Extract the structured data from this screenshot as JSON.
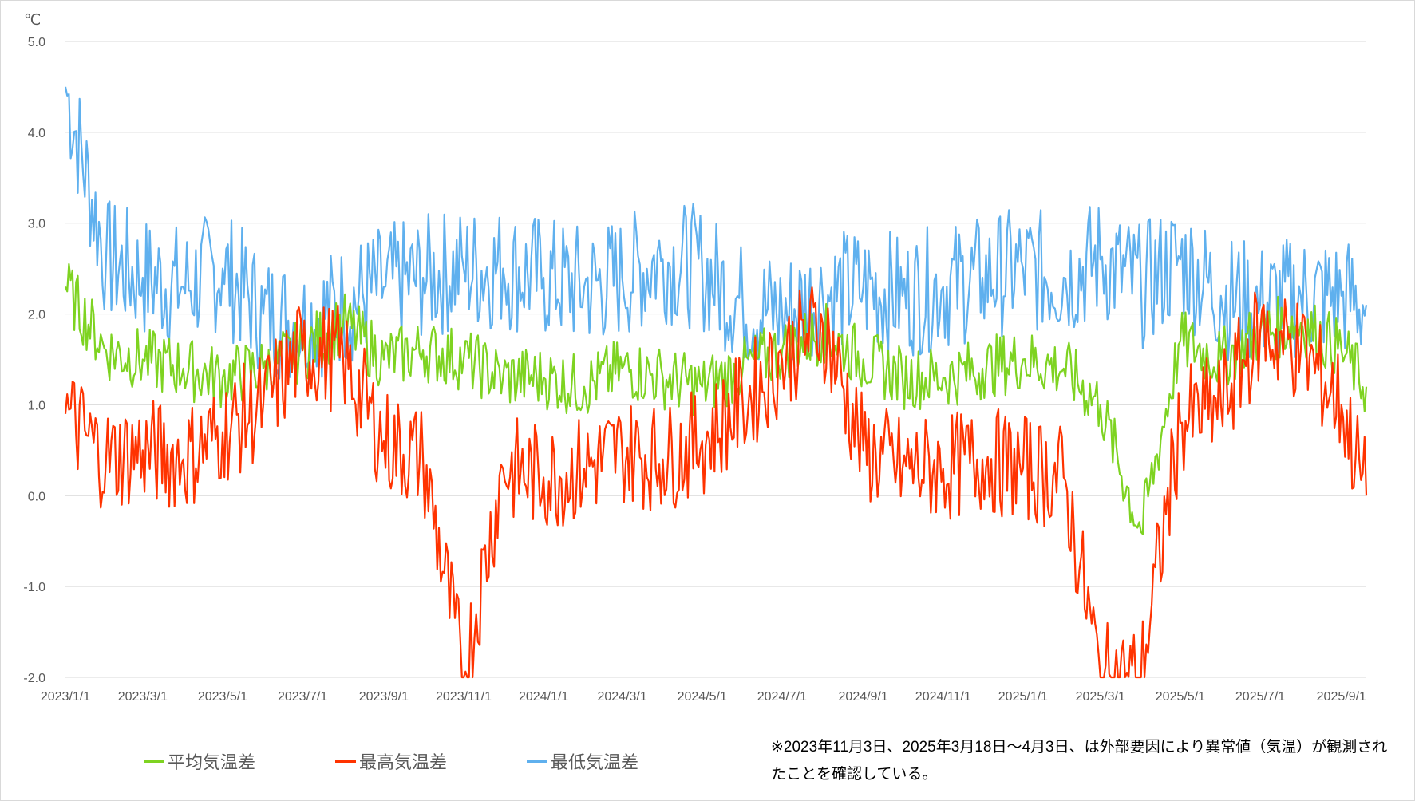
{
  "chart_data": {
    "type": "line",
    "title": "",
    "ylabel": "℃",
    "xlabel": "",
    "ylim": [
      -2.0,
      5.0
    ],
    "y_ticks": [
      "5.0",
      "4.0",
      "3.0",
      "2.0",
      "1.0",
      "0.0",
      "-1.0",
      "-2.0"
    ],
    "x_range": [
      "2023/1/1",
      "2025/9/20"
    ],
    "x_ticks": [
      "2023/1/1",
      "2023/3/1",
      "2023/5/1",
      "2023/7/1",
      "2023/9/1",
      "2023/11/1",
      "2024/1/1",
      "2024/3/1",
      "2024/5/1",
      "2024/7/1",
      "2024/9/1",
      "2024/11/1",
      "2025/1/1",
      "2025/3/1",
      "2025/5/1",
      "2025/7/1",
      "2025/9/1"
    ],
    "grid": true,
    "legend_position": "bottom",
    "series": [
      {
        "name": "平均気温差",
        "color": "#7ed321",
        "x": [
          "2023/1/1",
          "2023/2/1",
          "2023/3/1",
          "2023/4/1",
          "2023/5/1",
          "2023/6/1",
          "2023/7/1",
          "2023/8/1",
          "2023/9/1",
          "2023/10/1",
          "2023/11/1",
          "2023/12/1",
          "2024/1/1",
          "2024/2/1",
          "2024/3/1",
          "2024/4/1",
          "2024/5/1",
          "2024/6/1",
          "2024/7/1",
          "2024/8/1",
          "2024/9/1",
          "2024/10/1",
          "2024/11/1",
          "2024/12/1",
          "2025/1/1",
          "2025/2/1",
          "2025/3/1",
          "2025/4/1",
          "2025/5/1",
          "2025/6/1",
          "2025/7/1",
          "2025/8/1",
          "2025/9/1",
          "2025/9/20"
        ],
        "values": [
          2.3,
          1.6,
          1.5,
          1.4,
          1.3,
          1.4,
          1.6,
          1.9,
          1.5,
          1.6,
          1.5,
          1.3,
          1.3,
          1.2,
          1.4,
          1.3,
          1.2,
          1.4,
          1.6,
          1.8,
          1.5,
          1.3,
          1.3,
          1.4,
          1.5,
          1.4,
          1.0,
          -0.4,
          1.7,
          1.5,
          1.8,
          1.9,
          1.6,
          1.2
        ]
      },
      {
        "name": "最高気温差",
        "color": "#ff3300",
        "x": [
          "2023/1/1",
          "2023/2/1",
          "2023/3/1",
          "2023/4/1",
          "2023/5/1",
          "2023/6/1",
          "2023/7/1",
          "2023/8/1",
          "2023/9/1",
          "2023/10/1",
          "2023/11/1",
          "2023/12/1",
          "2024/1/1",
          "2024/2/1",
          "2024/3/1",
          "2024/4/1",
          "2024/5/1",
          "2024/6/1",
          "2024/7/1",
          "2024/8/1",
          "2024/9/1",
          "2024/10/1",
          "2024/11/1",
          "2024/12/1",
          "2025/1/1",
          "2025/2/1",
          "2025/3/1",
          "2025/4/1",
          "2025/5/1",
          "2025/6/1",
          "2025/7/1",
          "2025/8/1",
          "2025/9/1",
          "2025/9/20"
        ],
        "values": [
          0.9,
          0.4,
          0.5,
          0.4,
          0.7,
          1.0,
          1.6,
          1.5,
          0.6,
          0.4,
          -2.0,
          0.3,
          0.2,
          0.3,
          0.5,
          0.4,
          0.6,
          1.0,
          1.5,
          1.9,
          0.5,
          0.3,
          0.3,
          0.4,
          0.3,
          0.2,
          -2.0,
          -2.0,
          0.8,
          1.0,
          1.8,
          1.6,
          1.0,
          0.0
        ]
      },
      {
        "name": "最低気温差",
        "color": "#5fb0ee",
        "x": [
          "2023/1/1",
          "2023/2/1",
          "2023/3/1",
          "2023/4/1",
          "2023/5/1",
          "2023/6/1",
          "2023/7/1",
          "2023/8/1",
          "2023/9/1",
          "2023/10/1",
          "2023/11/1",
          "2023/12/1",
          "2024/1/1",
          "2024/2/1",
          "2024/3/1",
          "2024/4/1",
          "2024/5/1",
          "2024/6/1",
          "2024/7/1",
          "2024/8/1",
          "2024/9/1",
          "2024/10/1",
          "2024/11/1",
          "2024/12/1",
          "2025/1/1",
          "2025/2/1",
          "2025/3/1",
          "2025/4/1",
          "2025/5/1",
          "2025/6/1",
          "2025/7/1",
          "2025/8/1",
          "2025/9/1",
          "2025/9/20"
        ],
        "values": [
          4.5,
          2.6,
          2.4,
          2.3,
          2.5,
          2.0,
          1.9,
          2.1,
          2.3,
          2.4,
          2.5,
          2.5,
          2.4,
          2.3,
          2.4,
          2.6,
          2.5,
          2.1,
          2.0,
          2.2,
          2.3,
          2.2,
          2.3,
          2.4,
          2.5,
          2.4,
          2.6,
          2.3,
          2.6,
          2.2,
          2.1,
          2.2,
          2.2,
          2.1
        ]
      }
    ],
    "annotation": "※2023年11月3日、2025年3月18日～4月3日、は外部要因により異常値（気温）が観測されたことを確認している。"
  }
}
